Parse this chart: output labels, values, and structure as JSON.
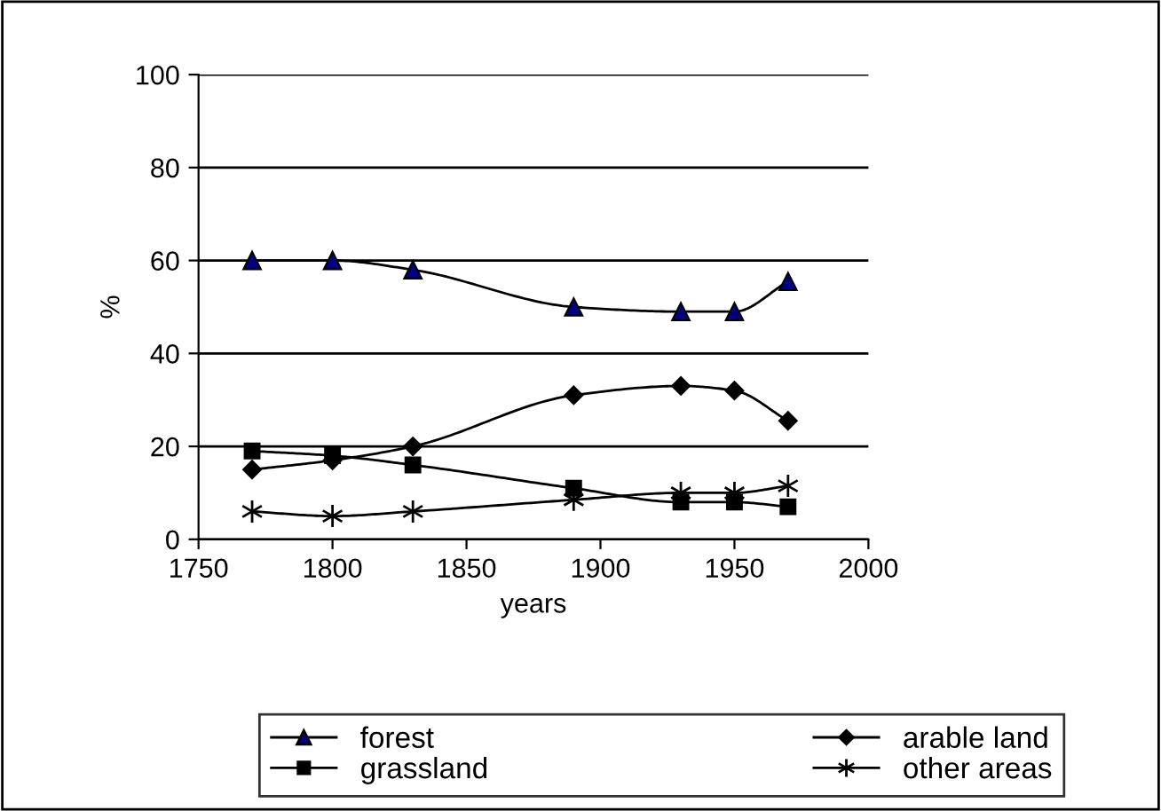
{
  "chart_data": {
    "type": "line",
    "xlabel": "years",
    "ylabel": "%",
    "x": [
      1770,
      1800,
      1830,
      1890,
      1930,
      1950,
      1970
    ],
    "xlim": [
      1750,
      2000
    ],
    "xticks": [
      1750,
      1800,
      1850,
      1900,
      1950,
      2000
    ],
    "ylim": [
      0,
      100
    ],
    "yticks": [
      0,
      20,
      40,
      60,
      80,
      100
    ],
    "grid": "y",
    "legend": "bottom",
    "line_style": "solid",
    "series": [
      {
        "name": "forest",
        "color": "#000080",
        "marker": "triangle",
        "values": [
          60,
          60,
          58,
          50,
          49,
          49,
          55.5
        ]
      },
      {
        "name": "arable land",
        "color": "#000000",
        "marker": "diamond",
        "values": [
          15,
          17,
          20,
          31,
          33,
          32,
          25.5
        ]
      },
      {
        "name": "grassland",
        "color": "#000000",
        "marker": "square",
        "values": [
          19,
          18,
          16,
          11,
          8,
          8,
          7
        ]
      },
      {
        "name": "other areas",
        "color": "#000000",
        "marker": "cross",
        "values": [
          6,
          5,
          6,
          8.5,
          10,
          10,
          11.5
        ]
      }
    ]
  }
}
